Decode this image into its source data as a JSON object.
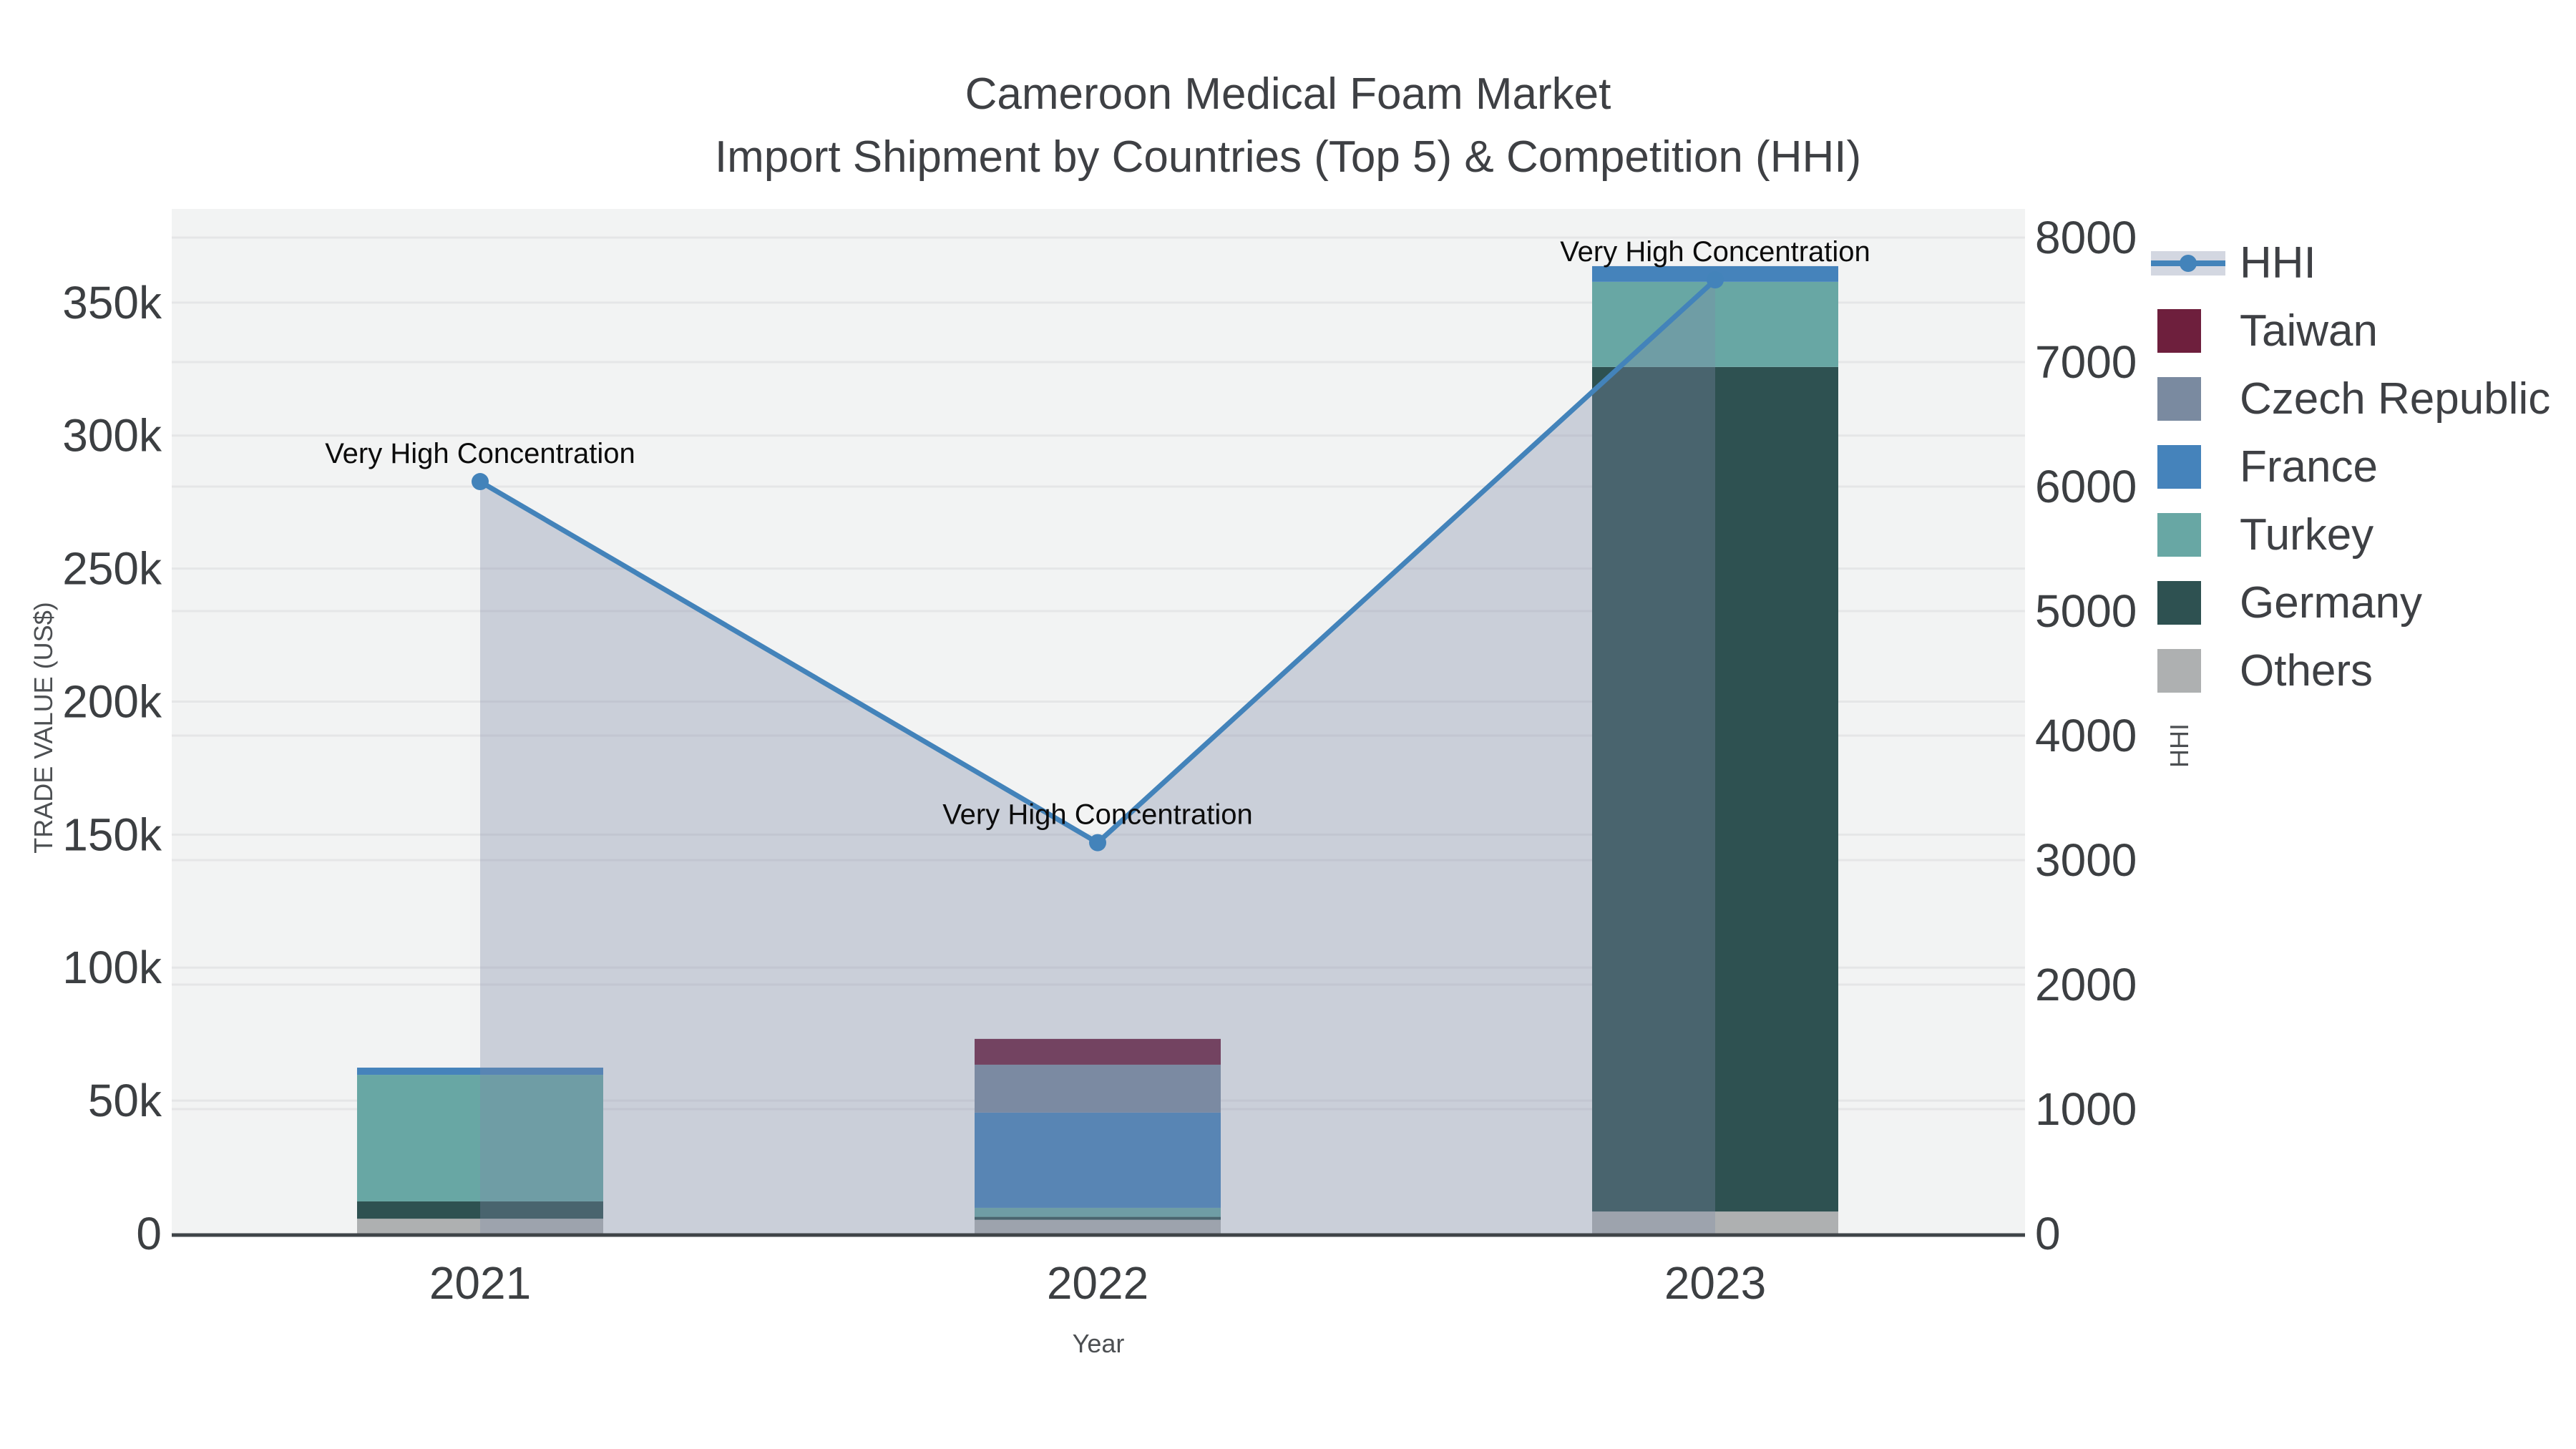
{
  "title": {
    "line1": "Cameroon Medical Foam Market",
    "line2": "Import Shipment by Countries (Top 5) & Competition (HHI)"
  },
  "chart_data": {
    "type": "bar",
    "stacked": true,
    "subtype": "stacked bars with overlaid line (secondary axis)",
    "categories": [
      "2021",
      "2022",
      "2023"
    ],
    "x_label": "Year",
    "plot_bg": "#f2f3f3",
    "grid": true,
    "grid_color": "#e5e6e7",
    "axis_line_color": "#3f4448",
    "series": [
      {
        "name": "Others",
        "color": "#aeb0b1",
        "values": [
          5600,
          5200,
          8300
        ]
      },
      {
        "name": "Germany",
        "color": "#2e5151",
        "values": [
          6500,
          1100,
          317500
        ]
      },
      {
        "name": "Turkey",
        "color": "#68a7a4",
        "values": [
          47600,
          3400,
          32000
        ]
      },
      {
        "name": "France",
        "color": "#4583bb",
        "values": [
          2700,
          35800,
          5900
        ]
      },
      {
        "name": "Czech Republic",
        "color": "#7a8aa0",
        "values": [
          0,
          18000,
          0
        ]
      },
      {
        "name": "Taiwan",
        "color": "#6e1f3d",
        "values": [
          0,
          9700,
          0
        ]
      }
    ],
    "line_series": {
      "name": "HHI",
      "color": "#4383ba",
      "fill": "tozeroy",
      "fill_color": "rgba(127,138,168,0.34)",
      "axis": "right",
      "values": [
        6040,
        3140,
        7660
      ]
    },
    "annotations": [
      {
        "text": "Very High Concentration",
        "x": "2021"
      },
      {
        "text": "Very High Concentration",
        "x": "2022"
      },
      {
        "text": "Very High Concentration",
        "x": "2023"
      }
    ],
    "y_left": {
      "label": "TRADE VALUE (US$)",
      "range": [
        0,
        385200
      ],
      "ticks": [
        {
          "t": "0",
          "v": 0
        },
        {
          "t": "50k",
          "v": 50000
        },
        {
          "t": "100k",
          "v": 100000
        },
        {
          "t": "150k",
          "v": 150000
        },
        {
          "t": "200k",
          "v": 200000
        },
        {
          "t": "250k",
          "v": 250000
        },
        {
          "t": "300k",
          "v": 300000
        },
        {
          "t": "350k",
          "v": 350000
        }
      ]
    },
    "y_right": {
      "label": "HHI",
      "range": [
        0,
        8230
      ],
      "ticks": [
        {
          "t": "0",
          "v": 0
        },
        {
          "t": "1000",
          "v": 1000
        },
        {
          "t": "2000",
          "v": 2000
        },
        {
          "t": "3000",
          "v": 3000
        },
        {
          "t": "4000",
          "v": 4000
        },
        {
          "t": "5000",
          "v": 5000
        },
        {
          "t": "6000",
          "v": 6000
        },
        {
          "t": "7000",
          "v": 7000
        },
        {
          "t": "8000",
          "v": 8000
        }
      ]
    },
    "legend": [
      {
        "label": "HHI",
        "type": "line",
        "color": "#4383ba",
        "band_color": "rgba(127,138,168,0.34)"
      },
      {
        "label": "Taiwan",
        "type": "box",
        "color": "#6e1f3d"
      },
      {
        "label": "Czech Republic",
        "type": "box",
        "color": "#7a8aa0"
      },
      {
        "label": "France",
        "type": "box",
        "color": "#4583bb"
      },
      {
        "label": "Turkey",
        "type": "box",
        "color": "#68a7a4"
      },
      {
        "label": "Germany",
        "type": "box",
        "color": "#2e5151"
      },
      {
        "label": "Others",
        "type": "box",
        "color": "#aeb0b1"
      }
    ]
  }
}
